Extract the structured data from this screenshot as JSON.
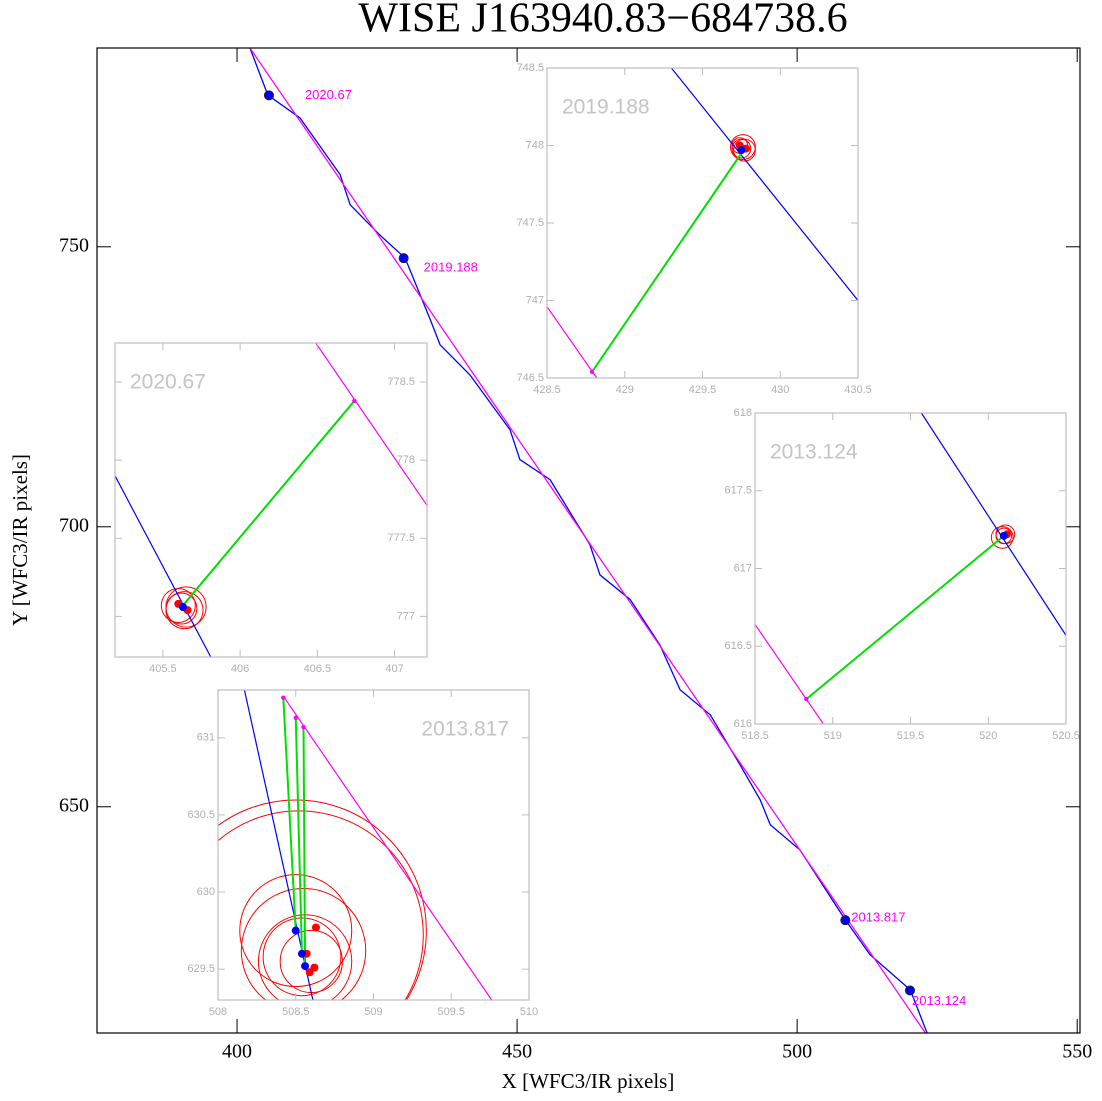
{
  "chart_data": {
    "type": "line",
    "title": "WISE J163940.83−684738.6",
    "xlabel": "X [WFC3/IR pixels]",
    "ylabel": "Y [WFC3/IR pixels]",
    "xlim": [
      375,
      550.5
    ],
    "ylim": [
      609.6,
      785.5
    ],
    "xticks": [
      400,
      450,
      500,
      550
    ],
    "yticks": [
      650,
      700,
      750
    ],
    "series": [
      {
        "color": "#0000ff",
        "x": [
          402.3,
          405.5,
          411.25,
          418.4,
          420.2,
          425.5,
          430.0,
          434.5,
          436.25,
          441.6,
          448.75,
          450.5,
          455.9,
          463.0,
          464.8,
          470.2,
          475.5,
          479.1,
          484.5,
          489.8,
          493.4,
          495.2,
          500.5,
          508.6,
          513.0,
          520.2,
          523.2
        ],
        "y": [
          785.5,
          777.1,
          773.0,
          762.9,
          757.5,
          752.1,
          748.0,
          737.0,
          732.5,
          727.1,
          717.3,
          712.0,
          708.4,
          696.8,
          691.4,
          687.0,
          678.9,
          670.9,
          666.4,
          657.5,
          651.25,
          646.8,
          642.3,
          629.8,
          623.6,
          617.3,
          609.6
        ]
      },
      {
        "color": "#ff00ff",
        "x": [
          402.3,
          522.9
        ],
        "y": [
          785.5,
          609.6
        ]
      }
    ],
    "points": {
      "color": "#0000ff",
      "x": [
        405.7,
        429.75,
        508.6,
        520.15
      ],
      "y": [
        777.05,
        747.97,
        629.75,
        617.2
      ],
      "labels": [
        "2020.67",
        "2019.188",
        "2013.817",
        "2013.124"
      ]
    },
    "insets": [
      {
        "label": "2019.188",
        "label_corner": "upper left",
        "yaxis": "left",
        "xlim": [
          428.5,
          430.5
        ],
        "ylim": [
          746.5,
          748.5
        ],
        "xticks": [
          428.5,
          429,
          429.5,
          430,
          430.5
        ],
        "yticks": [
          746.5,
          747,
          747.5,
          748,
          748.5
        ],
        "blue": {
          "x": [
            429.3,
            430.5
          ],
          "y": [
            748.5,
            747.0
          ]
        },
        "magenta": {
          "x": [
            428.5,
            428.82
          ],
          "y": [
            746.96,
            746.5
          ]
        },
        "green": [
          {
            "x": [
              428.79,
              429.75
            ],
            "y": [
              746.54,
              747.95
            ]
          }
        ],
        "circles": [
          {
            "x": 429.75,
            "y": 747.98,
            "r": 0.06
          },
          {
            "x": 429.76,
            "y": 747.99,
            "r": 0.08
          },
          {
            "x": 429.74,
            "y": 748.0,
            "r": 0.05
          },
          {
            "x": 429.77,
            "y": 747.97,
            "r": 0.07
          }
        ],
        "blue_points": {
          "x": [
            429.75
          ],
          "y": [
            747.97
          ]
        },
        "magenta_points": {
          "x": [
            428.79
          ],
          "y": [
            746.54
          ]
        },
        "red_points": {
          "x": [
            429.74,
            429.78
          ],
          "y": [
            748.0,
            747.98
          ]
        }
      },
      {
        "label": "2020.67",
        "label_corner": "upper left",
        "yaxis": "right",
        "xlim": [
          405.19,
          407.21
        ],
        "ylim": [
          776.74,
          778.75
        ],
        "xticks": [
          405.5,
          406,
          406.5,
          407
        ],
        "yticks": [
          777,
          777.5,
          778,
          778.5
        ],
        "blue": {
          "x": [
            405.19,
            405.81
          ],
          "y": [
            777.9,
            776.74
          ]
        },
        "magenta": {
          "x": [
            406.49,
            407.21
          ],
          "y": [
            778.75,
            777.71
          ]
        },
        "green": [
          {
            "x": [
              406.74,
              405.63
            ],
            "y": [
              778.38,
              777.07
            ]
          }
        ],
        "circles": [
          {
            "x": 405.62,
            "y": 777.05,
            "r": 0.1
          },
          {
            "x": 405.64,
            "y": 777.04,
            "r": 0.12
          },
          {
            "x": 405.6,
            "y": 777.07,
            "r": 0.11
          },
          {
            "x": 405.65,
            "y": 777.06,
            "r": 0.13
          }
        ],
        "blue_points": {
          "x": [
            405.63
          ],
          "y": [
            777.06
          ]
        },
        "magenta_points": {
          "x": [
            406.74
          ],
          "y": [
            778.38
          ]
        },
        "red_points": {
          "x": [
            405.6,
            405.66
          ],
          "y": [
            777.08,
            777.04
          ]
        }
      },
      {
        "label": "2013.124",
        "label_corner": "upper left",
        "yaxis": "left",
        "xlim": [
          518.5,
          520.5
        ],
        "ylim": [
          616,
          618
        ],
        "xticks": [
          518.5,
          519,
          519.5,
          520,
          520.5
        ],
        "yticks": [
          616,
          616.5,
          617,
          617.5,
          618
        ],
        "blue": {
          "x": [
            519.57,
            520.5
          ],
          "y": [
            618,
            616.57
          ]
        },
        "magenta": {
          "x": [
            518.5,
            518.94
          ],
          "y": [
            616.64,
            616
          ]
        },
        "green": [
          {
            "x": [
              518.83,
              520.1
            ],
            "y": [
              616.16,
              617.21
            ]
          }
        ],
        "circles": [
          {
            "x": 520.1,
            "y": 617.21,
            "r": 0.05
          },
          {
            "x": 520.11,
            "y": 617.22,
            "r": 0.06
          },
          {
            "x": 520.09,
            "y": 617.2,
            "r": 0.07
          }
        ],
        "blue_points": {
          "x": [
            520.1
          ],
          "y": [
            617.21
          ]
        },
        "magenta_points": {
          "x": [
            518.83
          ],
          "y": [
            616.16
          ]
        },
        "red_points": {
          "x": [
            520.12
          ],
          "y": [
            617.22
          ]
        }
      },
      {
        "label": "2013.817",
        "label_corner": "upper right",
        "yaxis": "left",
        "xlim": [
          508,
          510
        ],
        "ylim": [
          629.3,
          631.31
        ],
        "xticks": [
          508,
          508.5,
          509,
          509.5,
          510
        ],
        "yticks": [
          629.5,
          630,
          630.5,
          631
        ],
        "blue": {
          "x": [
            508.17,
            508.61
          ],
          "y": [
            631.31,
            629.3
          ]
        },
        "magenta": {
          "x": [
            508.42,
            509.76
          ],
          "y": [
            631.27,
            629.3
          ]
        },
        "green": [
          {
            "x": [
              508.42,
              508.5
            ],
            "y": [
              631.26,
              629.75
            ]
          },
          {
            "x": [
              508.5,
              508.54
            ],
            "y": [
              631.13,
              629.6
            ]
          },
          {
            "x": [
              508.55,
              508.56
            ],
            "y": [
              631.07,
              629.52
            ]
          }
        ],
        "circles": [
          {
            "x": 508.5,
            "y": 629.75,
            "r": 0.84
          },
          {
            "x": 508.52,
            "y": 629.72,
            "r": 0.8
          },
          {
            "x": 508.5,
            "y": 629.75,
            "r": 0.36
          },
          {
            "x": 508.55,
            "y": 629.62,
            "r": 0.4
          },
          {
            "x": 508.56,
            "y": 629.55,
            "r": 0.3
          },
          {
            "x": 508.54,
            "y": 629.58,
            "r": 0.25
          },
          {
            "x": 508.6,
            "y": 629.55,
            "r": 0.2
          }
        ],
        "blue_points": {
          "x": [
            508.5,
            508.54,
            508.56
          ],
          "y": [
            629.75,
            629.6,
            629.52
          ]
        },
        "magenta_points": {
          "x": [
            508.42,
            508.5,
            508.55
          ],
          "y": [
            631.26,
            631.13,
            631.07
          ]
        },
        "red_points": {
          "x": [
            508.63,
            508.57,
            508.62,
            508.59
          ],
          "y": [
            629.77,
            629.6,
            629.51,
            629.48
          ]
        }
      }
    ]
  }
}
